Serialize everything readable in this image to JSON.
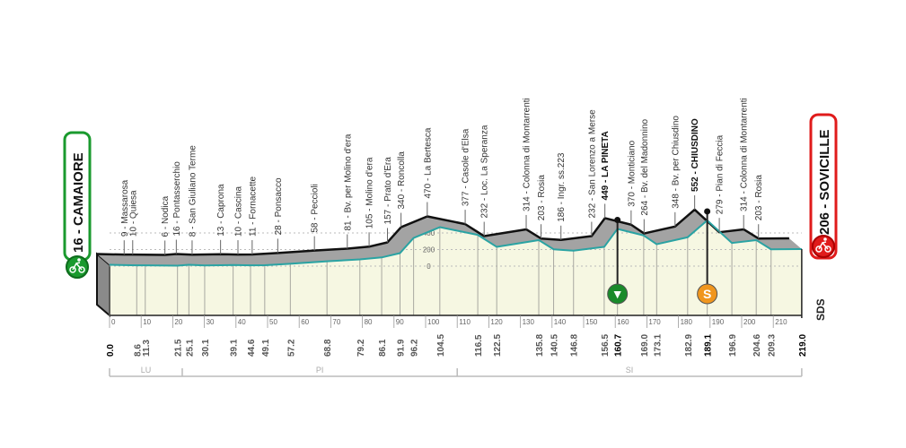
{
  "chart_data": {
    "type": "area",
    "title": "",
    "xlabel": "",
    "ylabel": "",
    "xlim": [
      0,
      219
    ],
    "x_ticks": [
      0,
      10,
      20,
      30,
      40,
      50,
      60,
      70,
      80,
      90,
      100,
      110,
      120,
      130,
      140,
      150,
      160,
      170,
      180,
      190,
      200,
      210
    ],
    "y_ticks": [
      0,
      200,
      400
    ],
    "start": {
      "label": "16 - CAMAIORE",
      "color": "#1a9a2e"
    },
    "finish": {
      "label": "206 - SOVICILLE",
      "color": "#e01b1b"
    },
    "profile_color": "#2aa3a3",
    "ground_color": "#f6f7e2",
    "points": [
      {
        "km": 0.0,
        "alt": 16,
        "name": "",
        "dist": "0.0",
        "bold": true
      },
      {
        "km": 8.6,
        "alt": 9,
        "name": "9 - Massarosa",
        "dist": "8.6"
      },
      {
        "km": 11.3,
        "alt": 10,
        "name": "10 - Quiesa",
        "dist": "11.3"
      },
      {
        "km": 21.5,
        "alt": 6,
        "name": "6 - Nodica",
        "dist": "21.5"
      },
      {
        "km": 25.1,
        "alt": 16,
        "name": "16 - Pontasserchio",
        "dist": "25.1"
      },
      {
        "km": 30.1,
        "alt": 8,
        "name": "8 - San Giuliano Terme",
        "dist": "30.1"
      },
      {
        "km": 39.1,
        "alt": 13,
        "name": "13 - Caprona",
        "dist": "39.1"
      },
      {
        "km": 44.6,
        "alt": 10,
        "name": "10 - Cascina",
        "dist": "44.6"
      },
      {
        "km": 49.1,
        "alt": 11,
        "name": "11 - Fornacette",
        "dist": "49.1"
      },
      {
        "km": 57.2,
        "alt": 28,
        "name": "28 - Ponsacco",
        "dist": "57.2"
      },
      {
        "km": 68.8,
        "alt": 58,
        "name": "58 - Peccioli",
        "dist": "68.8"
      },
      {
        "km": 79.2,
        "alt": 81,
        "name": "81 - Bv. per Molino d'era",
        "dist": "79.2"
      },
      {
        "km": 86.1,
        "alt": 105,
        "name": "105 - Molino d'era",
        "dist": "86.1"
      },
      {
        "km": 91.9,
        "alt": 157,
        "name": "157 - Prato d'Era",
        "dist": "91.9"
      },
      {
        "km": 96.2,
        "alt": 340,
        "name": "340 - Roncolla",
        "dist": "96.2"
      },
      {
        "km": 104.5,
        "alt": 470,
        "name": "470 - La Bertesca",
        "dist": "104.5"
      },
      {
        "km": 116.5,
        "alt": 377,
        "name": "377 - Casole d'Elsa",
        "dist": "116.5"
      },
      {
        "km": 122.5,
        "alt": 232,
        "name": "232 - Loc. La Speranza",
        "dist": "122.5"
      },
      {
        "km": 135.8,
        "alt": 314,
        "name": "314 - Colonna di Montarrenti",
        "dist": "135.8"
      },
      {
        "km": 140.5,
        "alt": 203,
        "name": "203 - Rosia",
        "dist": "140.5"
      },
      {
        "km": 146.8,
        "alt": 186,
        "name": "186 - Ingr. ss.223",
        "dist": "146.8"
      },
      {
        "km": 156.5,
        "alt": 232,
        "name": "232 - San Lorenzo a Merse",
        "dist": "156.5"
      },
      {
        "km": 160.7,
        "alt": 449,
        "name": "449 - LA PINETA",
        "dist": "160.7",
        "bold": true
      },
      {
        "km": 169.0,
        "alt": 370,
        "name": "370 - Monticiano",
        "dist": "169.0"
      },
      {
        "km": 173.1,
        "alt": 264,
        "name": "264 - Bv. del Madonnino",
        "dist": "173.1"
      },
      {
        "km": 182.9,
        "alt": 348,
        "name": "348 - Bv. per Chiusdino",
        "dist": "182.9"
      },
      {
        "km": 189.1,
        "alt": 552,
        "name": "552 - CHIUSDINO",
        "dist": "189.1",
        "bold": true
      },
      {
        "km": 196.9,
        "alt": 279,
        "name": "279 - Pian di Feccia",
        "dist": "196.9"
      },
      {
        "km": 204.6,
        "alt": 314,
        "name": "314 - Colonna di Montarrenti",
        "dist": "204.6"
      },
      {
        "km": 209.3,
        "alt": 203,
        "name": "203 - Rosia",
        "dist": "209.3"
      },
      {
        "km": 219.0,
        "alt": 206,
        "name": "",
        "dist": "219.0",
        "bold": true
      }
    ],
    "markers": [
      {
        "km": 160.7,
        "type": "intermediate-sprint",
        "symbol": "▼",
        "color": "#1a8a2a"
      },
      {
        "km": 189.1,
        "type": "sprint-bonus",
        "symbol": "S",
        "color": "#f0961e"
      }
    ],
    "zones": [
      {
        "label": "LU",
        "from_km": 0,
        "to_km": 23
      },
      {
        "label": "PI",
        "from_km": 23,
        "to_km": 110
      },
      {
        "label": "SI",
        "from_km": 110,
        "to_km": 219
      }
    ],
    "logo": "SDS"
  }
}
